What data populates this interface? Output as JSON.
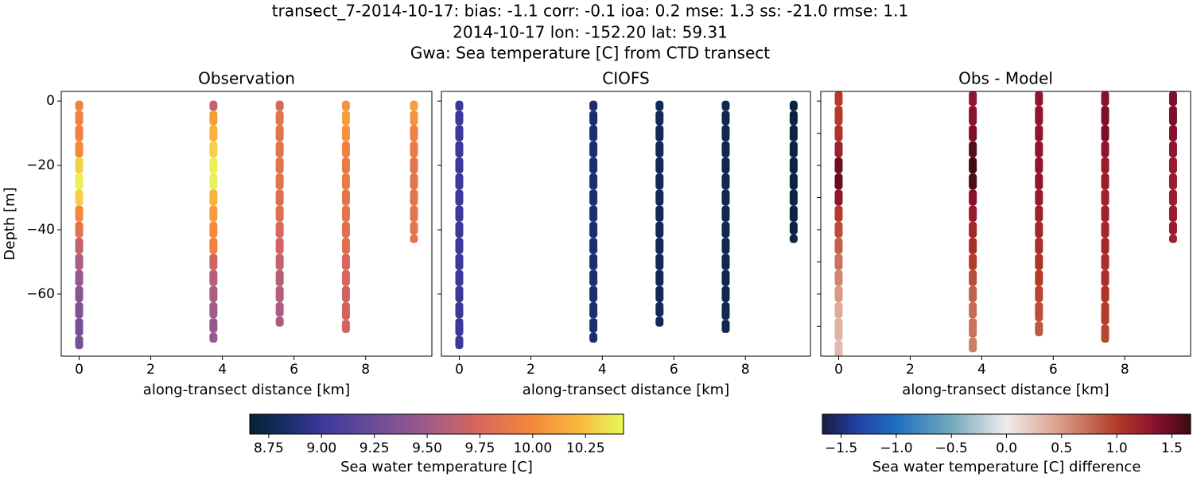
{
  "title": [
    "transect_7-2014-10-17: bias: -1.1  corr: -0.1  ioa: 0.2  mse: 1.3  ss: -21.0  rmse: 1.1",
    "2014-10-17 lon: -152.20 lat: 59.31",
    "Gwa: Sea temperature [C] from CTD transect"
  ],
  "chart_data": [
    {
      "type": "scatter",
      "title": "Observation",
      "xlabel": "along-transect distance [km]",
      "ylabel": "Depth [m]",
      "colorbar": 0,
      "xlim": [
        -0.5,
        9.85
      ],
      "ylim": [
        -79.3,
        3
      ],
      "xticks": [
        0,
        2,
        4,
        6,
        8
      ],
      "yticks": [
        {
          "value": -60,
          "label": "−60"
        },
        {
          "value": -40,
          "label": "−40"
        },
        {
          "value": -20,
          "label": "−20"
        },
        0
      ],
      "series": [
        {
          "x": 0,
          "depth": [
            -1,
            -5,
            -10,
            -15,
            -20,
            -25,
            -30,
            -35,
            -40,
            -45,
            -50,
            -55,
            -60,
            -65,
            -70,
            -76
          ],
          "values": [
            9.95,
            9.95,
            9.95,
            10.0,
            10.3,
            10.4,
            10.3,
            10.0,
            9.85,
            9.65,
            9.55,
            9.45,
            9.4,
            9.35,
            9.3,
            9.3
          ]
        },
        {
          "x": 3.75,
          "depth": [
            -1,
            -5,
            -10,
            -15,
            -20,
            -25,
            -30,
            -35,
            -40,
            -45,
            -50,
            -55,
            -60,
            -65,
            -70,
            -74
          ],
          "values": [
            9.65,
            10.1,
            10.2,
            10.3,
            10.4,
            10.4,
            10.2,
            10.1,
            10.0,
            9.95,
            9.7,
            9.6,
            9.55,
            9.5,
            9.45,
            9.45
          ]
        },
        {
          "x": 5.6,
          "depth": [
            -1,
            -5,
            -10,
            -15,
            -20,
            -25,
            -30,
            -35,
            -40,
            -45,
            -50,
            -55,
            -60,
            -65,
            -69
          ],
          "values": [
            9.75,
            9.85,
            9.85,
            9.85,
            9.85,
            9.85,
            9.8,
            9.8,
            9.75,
            9.7,
            9.65,
            9.6,
            9.6,
            9.55,
            9.55
          ]
        },
        {
          "x": 7.45,
          "depth": [
            -1,
            -5,
            -10,
            -15,
            -20,
            -25,
            -30,
            -35,
            -40,
            -45,
            -50,
            -55,
            -60,
            -65,
            -71
          ],
          "values": [
            10.05,
            10.1,
            10.05,
            9.95,
            9.9,
            9.9,
            9.85,
            9.85,
            9.8,
            9.8,
            9.75,
            9.75,
            9.7,
            9.7,
            9.7
          ]
        },
        {
          "x": 9.35,
          "depth": [
            -1,
            -5,
            -10,
            -15,
            -20,
            -25,
            -30,
            -35,
            -40,
            -43
          ],
          "values": [
            10.1,
            10.05,
            9.95,
            9.9,
            9.85,
            9.85,
            9.85,
            9.85,
            9.85,
            9.85
          ]
        }
      ]
    },
    {
      "type": "scatter",
      "title": "CIOFS",
      "xlabel": "along-transect distance [km]",
      "colorbar": 0,
      "xlim": [
        -0.5,
        9.82
      ],
      "ylim": [
        -79.3,
        3
      ],
      "xticks": [
        0,
        2,
        4,
        6,
        8
      ],
      "yticks": [
        -60,
        -40,
        -20,
        0
      ],
      "series": [
        {
          "x": 0,
          "depth": [
            -1,
            -5,
            -10,
            -15,
            -20,
            -25,
            -30,
            -35,
            -40,
            -45,
            -50,
            -55,
            -60,
            -65,
            -70,
            -76
          ],
          "values": [
            9.0,
            9.0,
            9.0,
            9.0,
            9.0,
            9.0,
            9.0,
            9.0,
            9.0,
            9.0,
            9.0,
            9.0,
            9.0,
            9.0,
            9.0,
            9.0
          ]
        },
        {
          "x": 3.75,
          "depth": [
            -1,
            -5,
            -10,
            -15,
            -20,
            -25,
            -30,
            -35,
            -40,
            -45,
            -50,
            -55,
            -60,
            -65,
            -70,
            -74
          ],
          "values": [
            8.85,
            8.85,
            8.85,
            8.85,
            8.85,
            8.85,
            8.85,
            8.85,
            8.85,
            8.85,
            8.85,
            8.85,
            8.85,
            8.85,
            8.85,
            8.85
          ]
        },
        {
          "x": 5.6,
          "depth": [
            -1,
            -5,
            -10,
            -15,
            -20,
            -25,
            -30,
            -35,
            -40,
            -45,
            -50,
            -55,
            -60,
            -65,
            -69
          ],
          "values": [
            8.78,
            8.78,
            8.78,
            8.78,
            8.78,
            8.78,
            8.78,
            8.78,
            8.78,
            8.78,
            8.78,
            8.78,
            8.78,
            8.78,
            8.78
          ]
        },
        {
          "x": 7.45,
          "depth": [
            -1,
            -5,
            -10,
            -15,
            -20,
            -25,
            -30,
            -35,
            -40,
            -45,
            -50,
            -55,
            -60,
            -65,
            -71
          ],
          "values": [
            8.75,
            8.75,
            8.75,
            8.75,
            8.75,
            8.75,
            8.75,
            8.75,
            8.75,
            8.75,
            8.75,
            8.75,
            8.75,
            8.75,
            8.75
          ]
        },
        {
          "x": 9.35,
          "depth": [
            -1,
            -5,
            -10,
            -15,
            -20,
            -25,
            -30,
            -35,
            -40,
            -43
          ],
          "values": [
            8.7,
            8.7,
            8.7,
            8.7,
            8.7,
            8.7,
            8.7,
            8.7,
            8.7,
            8.7
          ]
        }
      ]
    },
    {
      "type": "scatter",
      "title": "Obs - Model",
      "xlabel": "along-transect distance [km]",
      "colorbar": 1,
      "xlim": [
        -0.5,
        9.84
      ],
      "ylim": [
        -79.3,
        3
      ],
      "xticks": [
        0,
        2,
        4,
        6,
        8
      ],
      "yticks": [
        -70,
        -60,
        -50,
        -40,
        -30,
        -20,
        -10,
        0
      ],
      "series": [
        {
          "x": 0,
          "depth": [
            2,
            -5,
            -10,
            -15,
            -20,
            -25,
            -30,
            -35,
            -40,
            -45,
            -50,
            -55,
            -60,
            -65,
            -70,
            -79
          ],
          "values": [
            1.0,
            1.0,
            1.05,
            1.2,
            1.45,
            1.5,
            1.3,
            1.0,
            0.9,
            0.8,
            0.7,
            0.6,
            0.5,
            0.4,
            0.35,
            0.3
          ]
        },
        {
          "x": 3.75,
          "depth": [
            2,
            -5,
            -10,
            -15,
            -20,
            -25,
            -30,
            -35,
            -40,
            -45,
            -50,
            -55,
            -60,
            -65,
            -70,
            -77
          ],
          "values": [
            1.3,
            1.35,
            1.4,
            1.55,
            1.65,
            1.6,
            1.35,
            1.25,
            1.15,
            1.1,
            1.0,
            0.9,
            0.8,
            0.75,
            0.7,
            0.65
          ]
        },
        {
          "x": 5.6,
          "depth": [
            2,
            -5,
            -10,
            -15,
            -20,
            -25,
            -30,
            -35,
            -40,
            -45,
            -50,
            -55,
            -60,
            -65,
            -72
          ],
          "values": [
            1.3,
            1.3,
            1.3,
            1.3,
            1.3,
            1.3,
            1.25,
            1.2,
            1.15,
            1.1,
            1.05,
            1.0,
            0.95,
            0.9,
            0.85
          ]
        },
        {
          "x": 7.45,
          "depth": [
            2,
            -5,
            -10,
            -15,
            -20,
            -25,
            -30,
            -35,
            -40,
            -45,
            -50,
            -55,
            -60,
            -65,
            -74
          ],
          "values": [
            1.35,
            1.4,
            1.4,
            1.3,
            1.25,
            1.25,
            1.2,
            1.2,
            1.15,
            1.15,
            1.1,
            1.1,
            1.05,
            1.0,
            0.95
          ]
        },
        {
          "x": 9.35,
          "depth": [
            2,
            -5,
            -10,
            -15,
            -20,
            -25,
            -30,
            -35,
            -40,
            -43
          ],
          "values": [
            1.4,
            1.4,
            1.35,
            1.3,
            1.25,
            1.25,
            1.25,
            1.25,
            1.25,
            1.2
          ]
        }
      ]
    }
  ],
  "colorbars": [
    {
      "colormap": "thermal",
      "label": "Sea water temperature [C]",
      "clim": [
        8.66,
        10.43
      ],
      "ticks": [
        8.75,
        {
          "value": 9,
          "label": "9.00"
        },
        9.25,
        {
          "value": 9.5,
          "label": "9.50"
        },
        9.75,
        {
          "value": 10,
          "label": "10.00"
        },
        10.25
      ]
    },
    {
      "colormap": "balance",
      "label": "Sea water temperature [C] difference",
      "clim": [
        -1.67,
        1.67
      ],
      "ticks": [
        {
          "value": -1.5,
          "label": "−1.5"
        },
        {
          "value": -1,
          "label": "−1.0"
        },
        {
          "value": -0.5,
          "label": "−0.5"
        },
        {
          "value": 0,
          "label": "0.0"
        },
        0.5,
        {
          "value": 1,
          "label": "1.0"
        },
        1.5
      ]
    }
  ]
}
